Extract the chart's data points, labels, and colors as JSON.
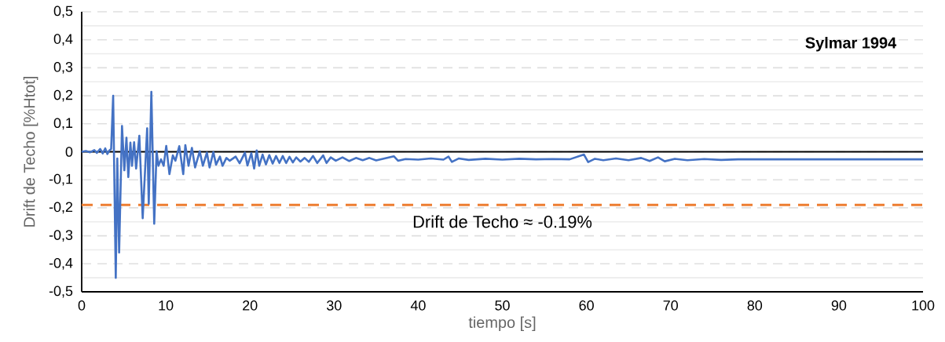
{
  "chart_data": {
    "type": "line",
    "title": "Sylmar 1994",
    "xlabel": "tiempo [s]",
    "ylabel": "Drift de Techo [%Htot]",
    "x": [
      0,
      0.5,
      1,
      1.5,
      1.8,
      2.2,
      2.5,
      2.8,
      3.05,
      3.3,
      3.5,
      3.74,
      4.05,
      4.23,
      4.45,
      4.79,
      5.07,
      5.32,
      5.54,
      5.79,
      5.98,
      6.23,
      6.47,
      6.85,
      7.25,
      7.78,
      7.97,
      8.28,
      8.62,
      8.9,
      9.12,
      9.43,
      9.74,
      10.05,
      10.43,
      10.83,
      11.14,
      11.6,
      12.07,
      12.32,
      12.7,
      13.1,
      13.48,
      14.03,
      14.4,
      14.88,
      15.2,
      15.65,
      15.97,
      16.43,
      16.74,
      17.2,
      17.6,
      18.3,
      18.77,
      19.4,
      19.7,
      20.16,
      20.5,
      20.8,
      21.1,
      21.5,
      21.9,
      22.3,
      22.7,
      23.1,
      23.5,
      23.9,
      24.3,
      24.7,
      25.1,
      25.5,
      26,
      26.5,
      27,
      27.5,
      28,
      28.7,
      29.1,
      29.6,
      30.2,
      31,
      31.8,
      32.6,
      33.4,
      34.2,
      35,
      36,
      37.1,
      37.6,
      38.5,
      40,
      41.5,
      43,
      43.6,
      44,
      44.8,
      46,
      48,
      50,
      52,
      54,
      56,
      58,
      59.7,
      60.2,
      61,
      62,
      63.5,
      65,
      66.5,
      67.5,
      68.5,
      69.3,
      70.5,
      72,
      74,
      76,
      78,
      80,
      90,
      100
    ],
    "series": [
      {
        "color": "#4472c4",
        "values": [
          0,
          0.003,
          -0.002,
          0.006,
          -0.004,
          0.01,
          -0.006,
          0.012,
          -0.008,
          0.005,
          0.01,
          0.2,
          -0.45,
          -0.024,
          -0.36,
          0.092,
          -0.066,
          0.05,
          -0.09,
          0.033,
          -0.05,
          0.034,
          -0.06,
          0.057,
          -0.237,
          0.084,
          -0.186,
          0.214,
          -0.257,
          0.002,
          -0.05,
          -0.027,
          -0.05,
          0.021,
          -0.08,
          -0.013,
          -0.032,
          0.02,
          -0.08,
          0.024,
          -0.05,
          0.014,
          -0.056,
          0.002,
          -0.05,
          -0.003,
          -0.056,
          -0.001,
          -0.046,
          -0.017,
          -0.05,
          -0.022,
          -0.032,
          -0.017,
          -0.041,
          -0.003,
          -0.049,
          -0.005,
          -0.06,
          0.005,
          -0.05,
          -0.01,
          -0.045,
          -0.012,
          -0.042,
          -0.015,
          -0.04,
          -0.015,
          -0.04,
          -0.018,
          -0.038,
          -0.02,
          -0.035,
          -0.022,
          -0.036,
          -0.015,
          -0.04,
          -0.013,
          -0.04,
          -0.02,
          -0.032,
          -0.02,
          -0.033,
          -0.022,
          -0.03,
          -0.022,
          -0.031,
          -0.024,
          -0.016,
          -0.032,
          -0.026,
          -0.028,
          -0.024,
          -0.028,
          -0.017,
          -0.036,
          -0.024,
          -0.029,
          -0.025,
          -0.028,
          -0.025,
          -0.027,
          -0.026,
          -0.027,
          -0.01,
          -0.037,
          -0.025,
          -0.03,
          -0.024,
          -0.03,
          -0.022,
          -0.033,
          -0.02,
          -0.034,
          -0.025,
          -0.03,
          -0.026,
          -0.029,
          -0.027,
          -0.027,
          -0.027,
          -0.027
        ]
      }
    ],
    "xlim": [
      0,
      100
    ],
    "xticks": [
      0,
      10,
      20,
      30,
      40,
      50,
      60,
      70,
      80,
      90,
      100
    ],
    "ylim": [
      -0.5,
      0.5
    ],
    "yticks": [
      {
        "value": -0.5,
        "label": "-0,5"
      },
      {
        "value": -0.4,
        "label": "-0,4"
      },
      {
        "value": -0.3,
        "label": "-0,3"
      },
      {
        "value": -0.2,
        "label": "-0,2"
      },
      {
        "value": -0.1,
        "label": "-0,1"
      },
      {
        "value": 0,
        "label": "0"
      },
      {
        "value": 0.1,
        "label": "0,1"
      },
      {
        "value": 0.2,
        "label": "0,2"
      },
      {
        "value": 0.3,
        "label": "0,3"
      },
      {
        "value": 0.4,
        "label": "0,4"
      },
      {
        "value": 0.5,
        "label": "0,5"
      }
    ],
    "grid": "y",
    "marker": "none",
    "ref_lines": [
      {
        "axis": "y",
        "value": -0.19,
        "label": "Drift de Techo ≈ -0.19%",
        "color": "#ed7d31",
        "line_style": "dashed"
      }
    ]
  }
}
